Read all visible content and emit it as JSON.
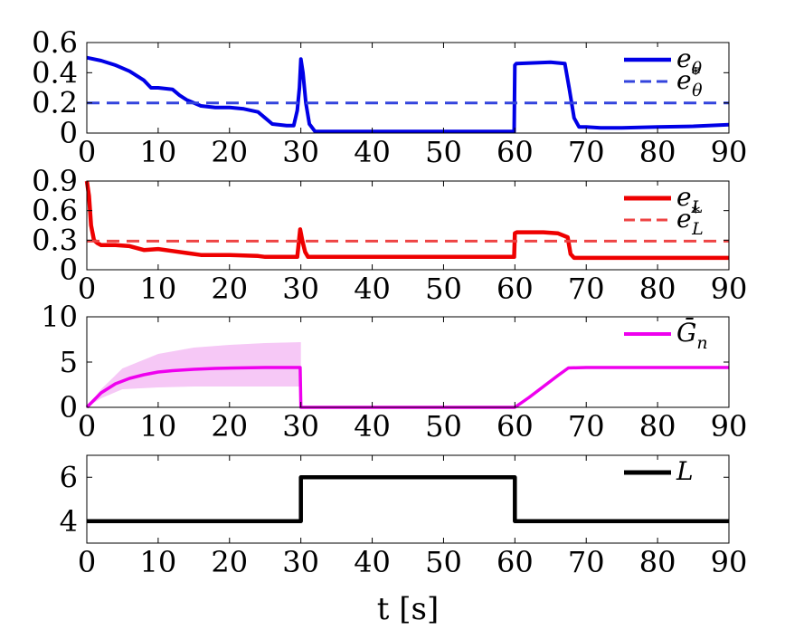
{
  "chart_data": [
    {
      "type": "line",
      "xlim": [
        0,
        90
      ],
      "ylim": [
        0,
        0.6
      ],
      "yticks": [
        "0",
        "0.2",
        "0.4",
        "0.6"
      ],
      "xticks": [
        "0",
        "10",
        "20",
        "30",
        "40",
        "50",
        "60",
        "70",
        "80",
        "90"
      ],
      "legend_position": "top-right",
      "series": [
        {
          "name": "eθ",
          "color": "#0000e6",
          "style": "solid",
          "x": [
            0,
            2,
            4,
            6,
            8,
            9,
            10,
            12,
            13,
            14,
            16,
            18,
            20,
            22,
            24,
            25,
            26,
            28,
            29,
            29.5,
            29.8,
            30,
            30.3,
            30.7,
            31.2,
            32,
            35,
            40,
            50,
            59.9,
            60,
            60.2,
            65,
            67,
            67.6,
            68.3,
            69,
            70,
            72,
            75,
            80,
            85,
            90
          ],
          "y": [
            0.5,
            0.48,
            0.45,
            0.41,
            0.35,
            0.3,
            0.3,
            0.29,
            0.25,
            0.22,
            0.18,
            0.17,
            0.17,
            0.16,
            0.14,
            0.1,
            0.06,
            0.05,
            0.05,
            0.15,
            0.3,
            0.49,
            0.4,
            0.2,
            0.06,
            0.01,
            0.01,
            0.01,
            0.01,
            0.01,
            0.45,
            0.46,
            0.47,
            0.46,
            0.3,
            0.1,
            0.04,
            0.04,
            0.035,
            0.035,
            0.04,
            0.045,
            0.055
          ]
        },
        {
          "name": "eθ*",
          "color": "#3344dd",
          "style": "dashed",
          "x": [
            0,
            90
          ],
          "y": [
            0.2,
            0.2
          ]
        }
      ],
      "legend": [
        {
          "label": "e",
          "sub": "θ",
          "sup": "",
          "series": 0
        },
        {
          "label": "e",
          "sub": "θ",
          "sup": "*",
          "series": 1
        }
      ]
    },
    {
      "type": "line",
      "xlim": [
        0,
        90
      ],
      "ylim": [
        0,
        0.9
      ],
      "yticks": [
        "0",
        "0.3",
        "0.6",
        "0.9"
      ],
      "xticks": [
        "0",
        "10",
        "20",
        "30",
        "40",
        "50",
        "60",
        "70",
        "80",
        "90"
      ],
      "legend_position": "top-right",
      "series": [
        {
          "name": "eL",
          "color": "#ee0000",
          "style": "solid",
          "x": [
            0,
            0.3,
            0.6,
            1,
            1.5,
            2,
            4,
            6,
            8,
            10,
            12,
            14,
            16,
            20,
            24,
            25,
            29.5,
            29.9,
            30.2,
            30.6,
            31,
            35,
            45,
            59.9,
            60,
            60.3,
            64,
            66,
            67.4,
            67.8,
            68.3,
            70,
            75,
            80,
            90
          ],
          "y": [
            0.9,
            0.75,
            0.45,
            0.3,
            0.27,
            0.25,
            0.25,
            0.24,
            0.2,
            0.21,
            0.19,
            0.17,
            0.15,
            0.15,
            0.14,
            0.13,
            0.13,
            0.41,
            0.3,
            0.18,
            0.13,
            0.13,
            0.13,
            0.13,
            0.37,
            0.38,
            0.38,
            0.37,
            0.33,
            0.16,
            0.12,
            0.12,
            0.12,
            0.12,
            0.12
          ]
        },
        {
          "name": "eL*",
          "color": "#ee4444",
          "style": "dashed",
          "x": [
            0,
            90
          ],
          "y": [
            0.29,
            0.29
          ]
        }
      ],
      "legend": [
        {
          "label": "e",
          "sub": "L",
          "sup": "",
          "series": 0
        },
        {
          "label": "e",
          "sub": "L",
          "sup": "*",
          "series": 1
        }
      ]
    },
    {
      "type": "area",
      "xlim": [
        0,
        90
      ],
      "ylim": [
        0,
        10
      ],
      "yticks": [
        "0",
        "5",
        "10"
      ],
      "xticks": [
        "0",
        "10",
        "20",
        "30",
        "40",
        "50",
        "60",
        "70",
        "80",
        "90"
      ],
      "legend_position": "top-right",
      "band": {
        "color": "#f6c8f6",
        "x": [
          0,
          2,
          5,
          10,
          15,
          20,
          25,
          30
        ],
        "upper": [
          0,
          2.0,
          4.3,
          5.9,
          6.6,
          6.9,
          7.1,
          7.2
        ],
        "lower": [
          0,
          1.0,
          2.0,
          2.2,
          2.3,
          2.3,
          2.3,
          2.3
        ]
      },
      "series": [
        {
          "name": "Ḡn",
          "color": "#ee00ee",
          "style": "solid",
          "x": [
            0,
            2,
            4,
            6,
            8,
            10,
            12,
            15,
            18,
            21,
            25,
            29.9,
            30,
            59.9,
            60,
            62,
            64,
            66,
            67.5,
            70,
            75,
            80,
            90
          ],
          "y": [
            0,
            1.6,
            2.6,
            3.2,
            3.6,
            3.9,
            4.05,
            4.2,
            4.3,
            4.35,
            4.4,
            4.4,
            0,
            0,
            0,
            1.1,
            2.3,
            3.5,
            4.35,
            4.4,
            4.4,
            4.4,
            4.4
          ]
        }
      ],
      "legend": [
        {
          "label": "Ḡ",
          "sub": "n",
          "sup": "",
          "series": 0
        }
      ]
    },
    {
      "type": "line",
      "xlim": [
        0,
        90
      ],
      "ylim": [
        3,
        7
      ],
      "yticks": [
        "4",
        "6"
      ],
      "ytick_values": [
        4,
        6
      ],
      "xticks": [
        "0",
        "10",
        "20",
        "30",
        "40",
        "50",
        "60",
        "70",
        "80",
        "90"
      ],
      "xlabel": "t [s]",
      "legend_position": "top-right",
      "series": [
        {
          "name": "L",
          "color": "#000000",
          "style": "solid",
          "x": [
            0,
            30,
            30,
            60,
            60,
            90
          ],
          "y": [
            4,
            4,
            6,
            6,
            4,
            4
          ]
        }
      ],
      "legend": [
        {
          "label": "L",
          "sub": "",
          "sup": "",
          "series": 0
        }
      ]
    }
  ]
}
